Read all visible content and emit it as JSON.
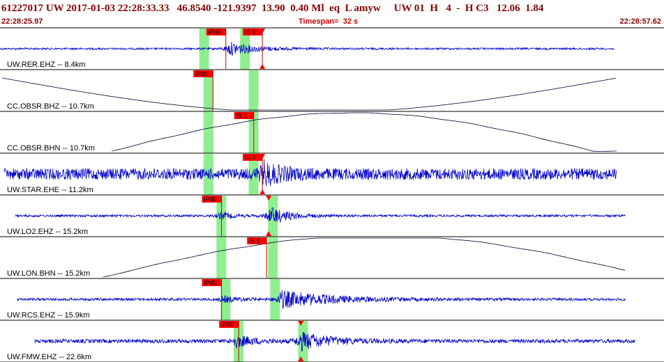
{
  "header": {
    "event_line": "61227017 UW 2017-01-03 22:28:33.33   46.8540 -121.9397  13.90  0.40 Ml  eq  L amyw     UW 01  H   4  -  H C3   12.06  1.84",
    "time_start": "22:28:25.97",
    "time_end": "22:28:57.62",
    "timespan_label": "Timespan=",
    "timespan_value": "32 s"
  },
  "colors": {
    "waveform": "#0000cc",
    "waveform_dark": "#000033",
    "pick_bg": "#ff0000",
    "pick_line": "#cc0000",
    "window": "#90ee90",
    "header_text": "#8b0000"
  },
  "traces": [
    {
      "label": "UW.RER.EHZ -- 8.4km",
      "style": "noise",
      "amp": 0.05,
      "color": "blue",
      "bursts": [
        {
          "t": 10.7,
          "amp": 0.35,
          "decay": 1.2
        }
      ],
      "data_start": 0.0,
      "data_end": 28.6,
      "picks": [
        {
          "label": "iPd0",
          "t": 9.6
        },
        {
          "label": "iS 1",
          "t": 11.3,
          "marker": true
        }
      ],
      "windows": [
        {
          "t": 9.5
        },
        {
          "t": 11.4
        }
      ]
    },
    {
      "label": "CC.OBSR.BHZ -- 10.7km",
      "style": "long",
      "color": "dark",
      "data_start": 0.1,
      "data_end": 28.7,
      "picks": [
        {
          "label": "iPd0",
          "t": 9.0
        }
      ],
      "windows": [
        {
          "t": 9.7
        },
        {
          "t": 11.8
        }
      ]
    },
    {
      "label": "CC.OBSR.BHN -- 10.7km",
      "style": "long2",
      "color": "dark",
      "data_start": 5.2,
      "data_end": 28.7,
      "picks": [
        {
          "label": "iS 1",
          "t": 10.9
        }
      ],
      "windows": [
        {
          "t": 9.7
        },
        {
          "t": 11.8
        }
      ]
    },
    {
      "label": "UW.STAR.EHE -- 11.2km",
      "style": "noise",
      "amp": 0.3,
      "color": "blue",
      "bursts": [
        {
          "t": 12.3,
          "amp": 0.5,
          "decay": 0.8
        }
      ],
      "data_start": 0.2,
      "data_end": 28.7,
      "picks": [
        {
          "label": "iS 1",
          "t": 11.3,
          "marker": true
        }
      ],
      "windows": [
        {
          "t": 9.7
        },
        {
          "t": 11.8
        }
      ]
    },
    {
      "label": "UW.LO2.EHZ -- 15.2km",
      "style": "noise",
      "amp": 0.06,
      "color": "blue",
      "bursts": [
        {
          "t": 10.3,
          "amp": 0.2,
          "decay": 0.5
        },
        {
          "t": 12.6,
          "amp": 0.45,
          "decay": 0.9
        }
      ],
      "data_start": 0.7,
      "data_end": 29.1,
      "picks": [
        {
          "label": "iPd0",
          "t": 9.4
        },
        {
          "label": "",
          "t": 12.5,
          "marker": true
        }
      ],
      "windows": [
        {
          "t": 10.3
        },
        {
          "t": 12.7
        }
      ]
    },
    {
      "label": "UW.LON.BHN -- 15.2km",
      "style": "long3",
      "color": "dark",
      "data_start": 4.8,
      "data_end": 29.1,
      "picks": [
        {
          "label": "iS 1",
          "t": 11.5
        }
      ],
      "windows": [
        {
          "t": 10.3
        },
        {
          "t": 12.7
        }
      ]
    },
    {
      "label": "UW.RCS.EHZ -- 15.9km",
      "style": "noise",
      "amp": 0.07,
      "color": "blue",
      "bursts": [
        {
          "t": 10.4,
          "amp": 0.15,
          "decay": 0.8
        },
        {
          "t": 13.1,
          "amp": 0.45,
          "decay": 2.4
        }
      ],
      "data_start": 0.8,
      "data_end": 29.1,
      "picks": [
        {
          "label": "iPd0",
          "t": 9.4
        }
      ],
      "windows": [
        {
          "t": 10.5
        },
        {
          "t": 12.8
        }
      ]
    },
    {
      "label": "UW.FMW.EHZ -- 22.6km",
      "style": "noise",
      "amp": 0.1,
      "color": "blue",
      "bursts": [
        {
          "t": 11.0,
          "amp": 0.3,
          "decay": 0.8
        },
        {
          "t": 14.0,
          "amp": 0.45,
          "decay": 1.4
        }
      ],
      "data_start": 1.6,
      "data_end": 29.6,
      "picks": [
        {
          "label": "iPd0",
          "t": 10.2
        },
        {
          "label": "",
          "t": 14.0,
          "marker": true
        }
      ],
      "windows": [
        {
          "t": 11.1
        },
        {
          "t": 14.1
        }
      ]
    }
  ],
  "time_axis_seconds": [
    0,
    30.9
  ]
}
